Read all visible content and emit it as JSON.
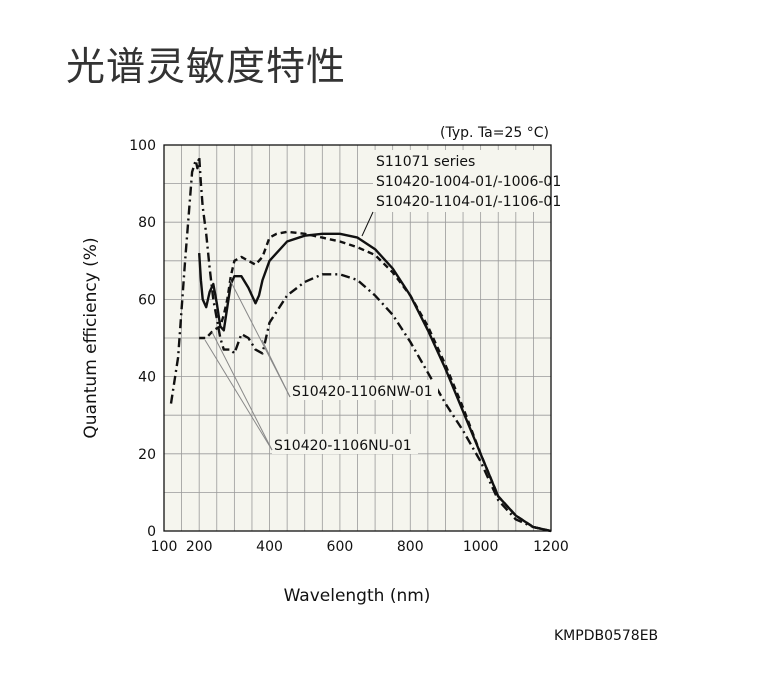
{
  "page": {
    "title": "光谱灵敏度特性",
    "code": "KMPDB0578EB"
  },
  "chart_data": {
    "type": "line",
    "title": "",
    "annotation": "(Typ. Ta=25 °C)",
    "xlabel": "Wavelength (nm)",
    "ylabel": "Quantum efficiency (%)",
    "xlim": [
      100,
      1200
    ],
    "ylim": [
      0,
      100
    ],
    "x_ticks": [
      100,
      200,
      400,
      600,
      800,
      1000,
      1200
    ],
    "y_ticks": [
      0,
      20,
      40,
      60,
      80,
      100
    ],
    "grid": true,
    "legend_lines": [
      "S11071 series",
      "S10420-1004-01/-1006-01",
      "S10420-1104-01/-1106-01"
    ],
    "series": [
      {
        "name": "S11071 series / S10420-1004-01/-1006-01 / S10420-1104-01/-1106-01",
        "style": "solid",
        "x": [
          200,
          205,
          210,
          220,
          230,
          240,
          250,
          260,
          270,
          280,
          290,
          300,
          320,
          340,
          360,
          370,
          380,
          400,
          450,
          500,
          550,
          600,
          650,
          700,
          750,
          800,
          850,
          900,
          950,
          1000,
          1050,
          1100,
          1150,
          1200
        ],
        "y": [
          72,
          65,
          60,
          58,
          62,
          64,
          59,
          53,
          52,
          58,
          64,
          66,
          66,
          63,
          59,
          61,
          65,
          70,
          75,
          76.5,
          77,
          77,
          76,
          73,
          68,
          61,
          52,
          42,
          31,
          20,
          9,
          4,
          1,
          0
        ]
      },
      {
        "name": "",
        "style": "dashed",
        "x": [
          200,
          220,
          240,
          260,
          270,
          280,
          290,
          300,
          320,
          340,
          360,
          380,
          400,
          420,
          450,
          500,
          550,
          600,
          650,
          700,
          750,
          800,
          850,
          900,
          950,
          1000,
          1050,
          1100,
          1150,
          1200
        ],
        "y": [
          50,
          50,
          52,
          53,
          56,
          60,
          66,
          70,
          71,
          70,
          69,
          71,
          76,
          77,
          77.5,
          77,
          76,
          75,
          73.5,
          71.5,
          67,
          61,
          53,
          43,
          32,
          20,
          9,
          4,
          1,
          0
        ]
      },
      {
        "name": "",
        "style": "dash-dot",
        "x": [
          120,
          140,
          160,
          180,
          190,
          195,
          200,
          205,
          210,
          220,
          230,
          240,
          250,
          260,
          270,
          280,
          290,
          300,
          320,
          340,
          360,
          380,
          400,
          450,
          500,
          550,
          600,
          650,
          700,
          750,
          800,
          850,
          900,
          950,
          1000,
          1050,
          1100,
          1150,
          1200
        ],
        "y": [
          33,
          45,
          70,
          93,
          96,
          94,
          97,
          90,
          84,
          77,
          68,
          60,
          55,
          50,
          47,
          47,
          47,
          46,
          51,
          50,
          47,
          46,
          54,
          61,
          64.5,
          66.5,
          66.5,
          65,
          61,
          56,
          49,
          41,
          33,
          26,
          18,
          8,
          3,
          1,
          0
        ]
      }
    ],
    "annotations": [
      "S10420-1106NW-01",
      "S10420-1106NU-01"
    ]
  }
}
